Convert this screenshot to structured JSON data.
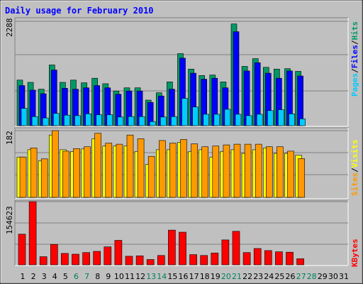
{
  "chart_data": [
    {
      "type": "bar",
      "title": "Daily usage for February 2010",
      "categories": [
        "1",
        "2",
        "3",
        "4",
        "5",
        "6",
        "7",
        "8",
        "9",
        "10",
        "11",
        "12",
        "13",
        "14",
        "15",
        "16",
        "17",
        "18",
        "19",
        "20",
        "21",
        "22",
        "23",
        "24",
        "25",
        "26",
        "27",
        "28",
        "29",
        "30",
        "31"
      ],
      "weekend_days": [
        "6",
        "7",
        "13",
        "14",
        "20",
        "21",
        "27",
        "28"
      ],
      "ymax_label": "2288",
      "ylim": [
        0,
        2288
      ],
      "legend": [
        "Pages",
        "/",
        "Files",
        "/",
        "Hits"
      ],
      "series": [
        {
          "name": "Hits",
          "color": "#009966",
          "values": [
            1000,
            950,
            800,
            1330,
            950,
            1000,
            940,
            1040,
            920,
            760,
            830,
            830,
            560,
            720,
            960,
            1580,
            1240,
            1100,
            1110,
            960,
            2230,
            1300,
            1470,
            1280,
            1240,
            1250,
            1190,
            0,
            0,
            0,
            0
          ]
        },
        {
          "name": "Files",
          "color": "#0000ff",
          "values": [
            880,
            780,
            700,
            1220,
            820,
            800,
            830,
            880,
            830,
            690,
            760,
            760,
            510,
            650,
            800,
            1480,
            1150,
            1020,
            1040,
            830,
            2060,
            1200,
            1380,
            1150,
            1040,
            1200,
            1090,
            0,
            0,
            0,
            0
          ]
        },
        {
          "name": "Pages",
          "color": "#00ccff",
          "values": [
            380,
            200,
            170,
            270,
            230,
            220,
            260,
            240,
            240,
            190,
            200,
            200,
            90,
            190,
            200,
            600,
            410,
            250,
            250,
            360,
            250,
            220,
            250,
            330,
            350,
            260,
            150,
            0,
            0,
            0,
            0
          ]
        }
      ]
    },
    {
      "type": "bar",
      "categories": [
        "1",
        "2",
        "3",
        "4",
        "5",
        "6",
        "7",
        "8",
        "9",
        "10",
        "11",
        "12",
        "13",
        "14",
        "15",
        "16",
        "17",
        "18",
        "19",
        "20",
        "21",
        "22",
        "23",
        "24",
        "25",
        "26",
        "27",
        "28",
        "29",
        "30",
        "31"
      ],
      "ymax_label": "182",
      "ylim": [
        0,
        182
      ],
      "legend": [
        "Sites",
        "/",
        "Visits"
      ],
      "series": [
        {
          "name": "Visits",
          "color": "#ffff00",
          "values": [
            110,
            130,
            100,
            170,
            130,
            125,
            132,
            160,
            140,
            140,
            140,
            125,
            90,
            130,
            130,
            150,
            125,
            130,
            110,
            125,
            130,
            120,
            130,
            135,
            120,
            120,
            115,
            0,
            0,
            0,
            0
          ]
        },
        {
          "name": "Sites",
          "color": "#ff9900",
          "values": [
            110,
            135,
            105,
            182,
            126,
            133,
            138,
            175,
            148,
            145,
            170,
            160,
            112,
            155,
            148,
            158,
            146,
            138,
            140,
            143,
            145,
            145,
            145,
            138,
            138,
            126,
            106,
            0,
            0,
            0,
            0
          ]
        }
      ]
    },
    {
      "type": "bar",
      "categories": [
        "1",
        "2",
        "3",
        "4",
        "5",
        "6",
        "7",
        "8",
        "9",
        "10",
        "11",
        "12",
        "13",
        "14",
        "15",
        "16",
        "17",
        "18",
        "19",
        "20",
        "21",
        "22",
        "23",
        "24",
        "25",
        "26",
        "27",
        "28",
        "29",
        "30",
        "31"
      ],
      "ymax_label": "154623",
      "ylim": [
        0,
        154623
      ],
      "legend": [
        "KBytes"
      ],
      "series": [
        {
          "name": "KBytes",
          "color": "#ff0000",
          "values": [
            75000,
            154623,
            20000,
            50000,
            28000,
            26000,
            30000,
            33000,
            44000,
            60000,
            21000,
            22000,
            13000,
            23000,
            85000,
            80000,
            25000,
            23000,
            29000,
            61000,
            82000,
            30000,
            40000,
            35000,
            32000,
            31000,
            15000,
            0,
            0,
            0,
            0
          ]
        }
      ]
    }
  ]
}
